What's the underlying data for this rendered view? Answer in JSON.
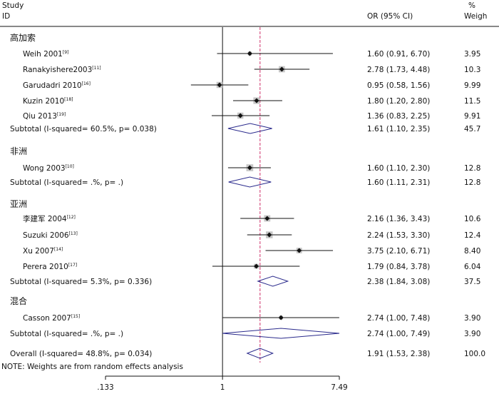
{
  "chart_data": {
    "type": "forest",
    "header": {
      "study": "Study",
      "id": "ID",
      "or_ci": "OR (95% CI)",
      "weight_pct": "%",
      "weight": "Weigh"
    },
    "x_scale": "log",
    "xlim": [
      0.133,
      7.49
    ],
    "x_ticks": [
      {
        "value": 0.133,
        "label": ".133"
      },
      {
        "value": 1,
        "label": "1"
      },
      {
        "value": 7.49,
        "label": "7.49"
      }
    ],
    "null_line": 1,
    "overall_line": 1.91,
    "rows": [
      {
        "kind": "group",
        "label": "高加索"
      },
      {
        "kind": "study",
        "label": "Weih 2001",
        "ref": "[9]",
        "or": 1.6,
        "lo": 0.91,
        "hi": 6.7,
        "ci_text": "1.60 (0.91, 6.70)",
        "weight": "3.95"
      },
      {
        "kind": "study",
        "label": "Ranakyishere2003",
        "ref": "[11]",
        "or": 2.78,
        "lo": 1.73,
        "hi": 4.48,
        "ci_text": "2.78 (1.73, 4.48)",
        "weight": "10.3"
      },
      {
        "kind": "study",
        "label": "Garudadri 2010",
        "ref": "[16]",
        "or": 0.95,
        "lo": 0.58,
        "hi": 1.56,
        "ci_text": "0.95 (0.58, 1.56)",
        "weight": "9.99"
      },
      {
        "kind": "study",
        "label": "Kuzin 2010",
        "ref": "[18]",
        "or": 1.8,
        "lo": 1.2,
        "hi": 2.8,
        "ci_text": "1.80 (1.20, 2.80)",
        "weight": "11.5"
      },
      {
        "kind": "study",
        "label": "Qiu 2013",
        "ref": "[19]",
        "or": 1.36,
        "lo": 0.83,
        "hi": 2.25,
        "ci_text": "1.36 (0.83, 2.25)",
        "weight": "9.91"
      },
      {
        "kind": "subtotal",
        "label": "Subtotal (I-squared= 60.5%, p= 0.038)",
        "or": 1.61,
        "lo": 1.1,
        "hi": 2.35,
        "ci_text": "1.61 (1.10, 2.35)",
        "weight": "45.7"
      },
      {
        "kind": "group",
        "label": "非洲"
      },
      {
        "kind": "study",
        "label": "Wong 2003",
        "ref": "[10]",
        "or": 1.6,
        "lo": 1.1,
        "hi": 2.3,
        "ci_text": "1.60 (1.10, 2.30)",
        "weight": "12.8"
      },
      {
        "kind": "subtotal",
        "label": "Subtotal (I-squared= .%, p= .)",
        "or": 1.6,
        "lo": 1.11,
        "hi": 2.31,
        "ci_text": "1.60 (1.11, 2.31)",
        "weight": "12.8"
      },
      {
        "kind": "group",
        "label": "亚洲"
      },
      {
        "kind": "study",
        "label": "李建军 2004",
        "ref": "[12]",
        "or": 2.16,
        "lo": 1.36,
        "hi": 3.43,
        "ci_text": "2.16 (1.36, 3.43)",
        "weight": "10.6"
      },
      {
        "kind": "study",
        "label": "Suzuki 2006",
        "ref": "[13]",
        "or": 2.24,
        "lo": 1.53,
        "hi": 3.3,
        "ci_text": "2.24 (1.53, 3.30)",
        "weight": "12.4"
      },
      {
        "kind": "study",
        "label": "Xu 2007",
        "ref": "[14]",
        "or": 3.75,
        "lo": 2.1,
        "hi": 6.71,
        "ci_text": "3.75 (2.10, 6.71)",
        "weight": "8.40"
      },
      {
        "kind": "study",
        "label": "Perera 2010",
        "ref": "[17]",
        "or": 1.79,
        "lo": 0.84,
        "hi": 3.78,
        "ci_text": "1.79 (0.84, 3.78)",
        "weight": "6.04"
      },
      {
        "kind": "subtotal",
        "label": "Subtotal (I-squared= 5.3%, p= 0.336)",
        "or": 2.38,
        "lo": 1.84,
        "hi": 3.08,
        "ci_text": "2.38 (1.84, 3.08)",
        "weight": "37.5"
      },
      {
        "kind": "group",
        "label": "混合"
      },
      {
        "kind": "study",
        "label": "Casson 2007",
        "ref": "[15]",
        "or": 2.74,
        "lo": 1.0,
        "hi": 7.48,
        "ci_text": "2.74 (1.00, 7.48)",
        "weight": "3.90"
      },
      {
        "kind": "subtotal",
        "label": "Subtotal (I-squared= .%, p= .)",
        "or": 2.74,
        "lo": 1.0,
        "hi": 7.49,
        "ci_text": "2.74 (1.00, 7.49)",
        "weight": "3.90"
      },
      {
        "kind": "overall",
        "label": "Overall (I-squared= 48.8%, p= 0.034)",
        "or": 1.91,
        "lo": 1.53,
        "hi": 2.38,
        "ci_text": "1.91 (1.53, 2.38)",
        "weight": "100.0"
      }
    ],
    "note": "NOTE:  Weights are from random effects analysis",
    "colors": {
      "diamond": "#2a2a8c",
      "ref_line": "#d0306a",
      "box": "#c6c6c6",
      "text": "#111111"
    }
  }
}
